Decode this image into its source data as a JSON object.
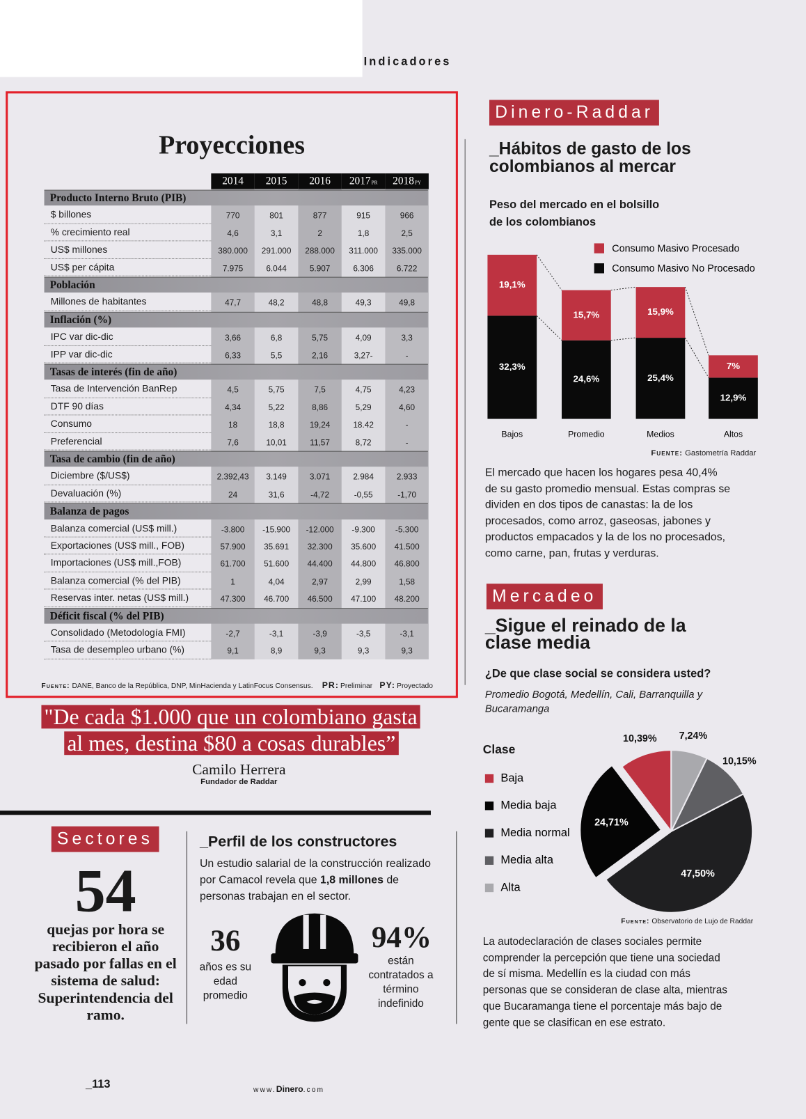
{
  "header": {
    "section": "Indicadores"
  },
  "table": {
    "title": "Proyecciones",
    "columns": [
      {
        "label": "2014"
      },
      {
        "label": "2015"
      },
      {
        "label": "2016"
      },
      {
        "label": "2017",
        "note": "PR"
      },
      {
        "label": "2018",
        "note": "PY"
      }
    ],
    "sections": [
      {
        "title": "Producto Interno Bruto (PIB)",
        "rows": [
          {
            "label": "$ billones",
            "values": [
              "770",
              "801",
              "877",
              "915",
              "966"
            ]
          },
          {
            "label": "% crecimiento real",
            "values": [
              "4,6",
              "3,1",
              "2",
              "1,8",
              "2,5"
            ]
          },
          {
            "label": "US$ millones",
            "values": [
              "380.000",
              "291.000",
              "288.000",
              "311.000",
              "335.000"
            ]
          },
          {
            "label": "US$ per cápita",
            "values": [
              "7.975",
              "6.044",
              "5.907",
              "6.306",
              "6.722"
            ]
          }
        ]
      },
      {
        "title": "Población",
        "rows": [
          {
            "label": "Millones de habitantes",
            "values": [
              "47,7",
              "48,2",
              "48,8",
              "49,3",
              "49,8"
            ]
          }
        ]
      },
      {
        "title": "Inflación (%)",
        "rows": [
          {
            "label": "IPC var dic-dic",
            "values": [
              "3,66",
              "6,8",
              "5,75",
              "4,09",
              "3,3"
            ]
          },
          {
            "label": "IPP var dic-dic",
            "values": [
              "6,33",
              "5,5",
              "2,16",
              "3,27-",
              "-"
            ]
          }
        ]
      },
      {
        "title": "Tasas de interés (fin de año)",
        "rows": [
          {
            "label": "Tasa de Intervención BanRep",
            "values": [
              "4,5",
              "5,75",
              "7,5",
              "4,75",
              "4,23"
            ]
          },
          {
            "label": "DTF 90 días",
            "values": [
              "4,34",
              "5,22",
              "8,86",
              "5,29",
              "4,60"
            ]
          },
          {
            "label": "Consumo",
            "values": [
              "18",
              "18,8",
              "19,24",
              "18.42",
              "-"
            ]
          },
          {
            "label": "Preferencial",
            "values": [
              "7,6",
              "10,01",
              "11,57",
              "8,72",
              "-"
            ]
          }
        ]
      },
      {
        "title": "Tasa de cambio (fin de año)",
        "rows": [
          {
            "label": "Diciembre ($/US$)",
            "values": [
              "2.392,43",
              "3.149",
              "3.071",
              "2.984",
              "2.933"
            ]
          },
          {
            "label": "Devaluación (%)",
            "values": [
              "24",
              "31,6",
              "-4,72",
              "-0,55",
              "-1,70"
            ]
          }
        ]
      },
      {
        "title": "Balanza de pagos",
        "rows": [
          {
            "label": "Balanza comercial (US$ mill.)",
            "values": [
              "-3.800",
              "-15.900",
              "-12.000",
              "-9.300",
              "-5.300"
            ]
          },
          {
            "label": "Exportaciones (US$ mill., FOB)",
            "values": [
              "57.900",
              "35.691",
              "32.300",
              "35.600",
              "41.500"
            ]
          },
          {
            "label": "Importaciones (US$ mill.,FOB)",
            "values": [
              "61.700",
              "51.600",
              "44.400",
              "44.800",
              "46.800"
            ]
          },
          {
            "label": "Balanza comercial (% del PIB)",
            "values": [
              "1",
              "4,04",
              "2,97",
              "2,99",
              "1,58"
            ]
          },
          {
            "label": "Reservas inter. netas (US$ mill.)",
            "values": [
              "47.300",
              "46.700",
              "46.500",
              "47.100",
              "48.200"
            ]
          }
        ]
      },
      {
        "title": "Déficit fiscal (% del PIB)",
        "rows": [
          {
            "label": "Consolidado (Metodología FMI)",
            "values": [
              "-2,7",
              "-3,1",
              "-3,9",
              "-3,5",
              "-3,1"
            ]
          },
          {
            "label": "Tasa de desempleo urbano (%)",
            "values": [
              "9,1",
              "8,9",
              "9,3",
              "9,3",
              "9,3"
            ]
          }
        ]
      }
    ],
    "source_label": "Fuente:",
    "source": "DANE, Banco de la República, DNP, MinHacienda y LatinFocus Consensus.",
    "notes": [
      {
        "key": "PR:",
        "text": "Preliminar"
      },
      {
        "key": "PY:",
        "text": "Proyectado"
      }
    ]
  },
  "quote": {
    "lines": [
      "\"De cada $1.000 que un colombiano gasta",
      "al mes, destina $80 a cosas durables”"
    ],
    "author": "Camilo Herrera",
    "role": "Fundador de Raddar"
  },
  "sectores": {
    "tag": "Sectores",
    "number": "54",
    "text": "quejas por hora se recibieron el año pasado por fallas en el sistema de salud: Superintendencia del ramo."
  },
  "perfil": {
    "title": "_Perfil de los constructores",
    "intro": [
      {
        "text": "Un estudio salarial de la construcción realizado por Camacol revela que "
      },
      {
        "text": "1,8 millones",
        "bold": true
      },
      {
        "text": " de personas trabajan en el sector."
      }
    ],
    "stats": [
      {
        "value": "36",
        "text": "años es su edad promedio"
      },
      {
        "value": "94%",
        "text": "están contratados a término indefinido"
      }
    ]
  },
  "habitos": {
    "tag": "Dinero-Raddar",
    "title": "_Hábitos de gasto de los colombianos al mercar",
    "chart": {
      "type": "bar",
      "stacked": true,
      "title": "Peso del mercado en el bolsillo de los colombianos",
      "categories": [
        "Bajos",
        "Promedio",
        "Medios",
        "Altos"
      ],
      "series": [
        {
          "name": "Consumo Masivo Procesado",
          "color": "#be3341",
          "values": [
            19.1,
            15.7,
            15.9,
            7
          ],
          "value_labels": [
            "19,1%",
            "15,7%",
            "15,9%",
            "7%"
          ]
        },
        {
          "name": "Consumo Masivo No Procesado",
          "color": "#0a0a0a",
          "values": [
            32.3,
            24.6,
            25.4,
            12.9
          ],
          "value_labels": [
            "32,3%",
            "24,6%",
            "25,4%",
            "12,9%"
          ]
        }
      ],
      "source_label": "Fuente:",
      "source": "Gastometría Raddar"
    },
    "text": "El mercado que hacen los hogares pesa 40,4% de su gasto promedio mensual. Estas compras se dividen en dos tipos de canastas: la de los procesados, como arroz, gaseosas, jabones y productos empacados y la de los no procesados, como carne, pan, frutas y verduras."
  },
  "mercadeo": {
    "tag": "Mercadeo",
    "title": "_Sigue el reinado de la clase media",
    "chart": {
      "type": "pie",
      "counterclockwise": true,
      "title": "¿De que clase social se considera usted?",
      "subtitle": "Promedio Bogotá, Medellín, Cali, Barranquilla y Bucaramanga",
      "legend_title": "Clase",
      "categories": [
        "Baja",
        "Media baja",
        "Media normal",
        "Media alta",
        "Alta"
      ],
      "values": [
        10.39,
        24.71,
        47.5,
        10.15,
        7.24
      ],
      "value_labels": [
        "10,39%",
        "24,71%",
        "47,50%",
        "10,15%",
        "7,24%"
      ],
      "colors": [
        "#be3341",
        "#050505",
        "#1f1f21",
        "#5f5f63",
        "#a9a9ad"
      ],
      "explode": [
        false,
        true,
        false,
        false,
        false
      ],
      "source_label": "Fuente:",
      "source": "Observatorio de Lujo de Raddar"
    },
    "text": "La autodeclaración de clases sociales permite comprender la percepción que tiene una sociedad de sí misma. Medellín es la ciudad con más personas que se consideran de clase alta, mientras que Bucaramanga tiene el porcentaje más bajo de gente que se clasifican en ese estrato."
  },
  "footer": {
    "page": "_113",
    "site": [
      {
        "text": "www."
      },
      {
        "text": "Dinero",
        "bold": true
      },
      {
        "text": ".com"
      }
    ]
  }
}
